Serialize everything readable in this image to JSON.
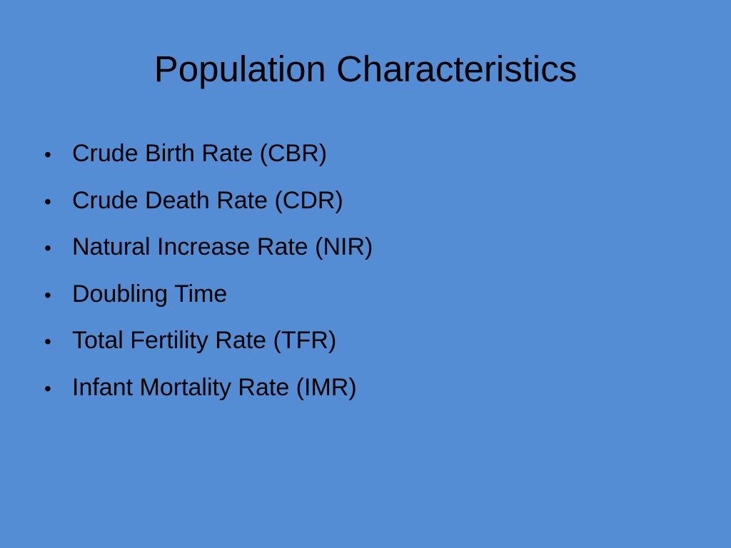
{
  "slide": {
    "title": "Population Characteristics",
    "background_color": "#548dd4",
    "bullet_glyph": "•",
    "bullets": [
      "Crude Birth Rate (CBR)",
      "Crude Death Rate (CDR)",
      "Natural Increase Rate (NIR)",
      "Doubling Time",
      "Total Fertility Rate (TFR)",
      "Infant Mortality Rate (IMR)"
    ]
  }
}
